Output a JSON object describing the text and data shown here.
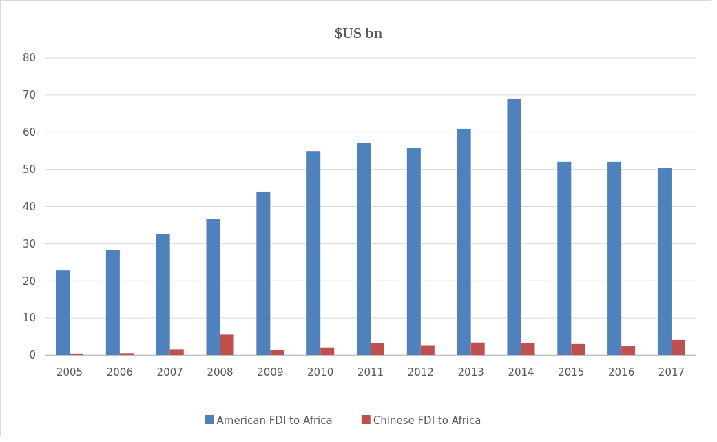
{
  "chart_data": {
    "type": "bar",
    "title": "$US bn",
    "categories": [
      "2005",
      "2006",
      "2007",
      "2008",
      "2009",
      "2010",
      "2011",
      "2012",
      "2013",
      "2014",
      "2015",
      "2016",
      "2017"
    ],
    "series": [
      {
        "name": "American FDI to Africa",
        "color": "#4f81bd",
        "values": [
          22.8,
          28.3,
          32.6,
          36.7,
          44,
          54.9,
          57,
          55.8,
          60.9,
          69,
          52,
          52,
          50.3
        ]
      },
      {
        "name": "Chinese FDI to Africa",
        "color": "#c0504d",
        "values": [
          0.4,
          0.5,
          1.6,
          5.5,
          1.4,
          2.1,
          3.2,
          2.5,
          3.4,
          3.2,
          3,
          2.4,
          4.1
        ]
      }
    ],
    "ylim": [
      0,
      80
    ],
    "yticks": [
      0,
      10,
      20,
      30,
      40,
      50,
      60,
      70,
      80
    ],
    "grid": "y",
    "legend": "bottom"
  }
}
